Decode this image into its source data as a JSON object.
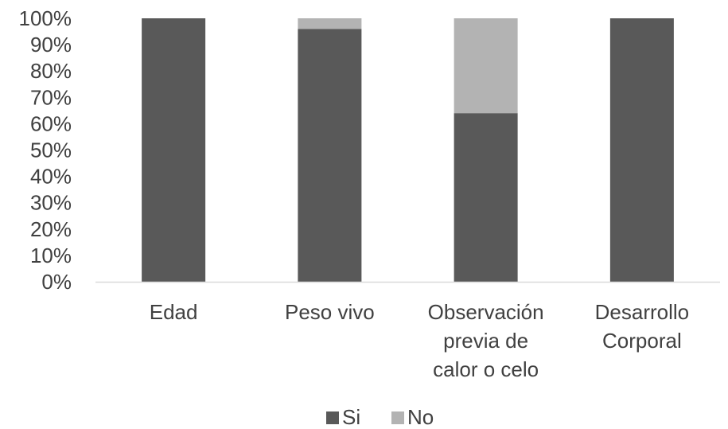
{
  "chart_data": {
    "type": "bar",
    "stacked": true,
    "percent_stacked": true,
    "categories": [
      [
        "Edad"
      ],
      [
        "Peso vivo"
      ],
      [
        "Observación",
        "previa de",
        "calor o celo"
      ],
      [
        "Desarrollo",
        "Corporal"
      ]
    ],
    "series": [
      {
        "name": "Si",
        "values": [
          100,
          96,
          64,
          100
        ],
        "color": "#595959"
      },
      {
        "name": "No",
        "values": [
          0,
          4,
          36,
          0
        ],
        "color": "#b3b3b3"
      }
    ],
    "ylim": [
      0,
      100
    ],
    "yticks": [
      "0%",
      "10%",
      "20%",
      "30%",
      "40%",
      "50%",
      "60%",
      "70%",
      "80%",
      "90%",
      "100%"
    ],
    "grid": false,
    "legend": "bottom",
    "axis_color": "#d9d9d9"
  }
}
